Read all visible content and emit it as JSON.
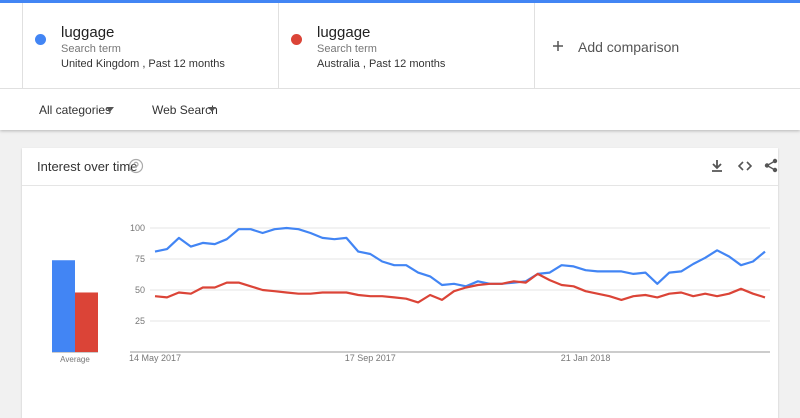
{
  "comparisons": [
    {
      "label": "Search term",
      "detail": "United Kingdom , Past 12 months"
    },
    {
      "label": "Search term",
      "detail": "Australia , Past 12 months"
    }
  ],
  "add_comparison": "Add comparison",
  "filters": [
    "All categories",
    "Web Search"
  ],
  "card_title": "Interest over time",
  "chart_data": {
    "type": "line",
    "categories": [
      "14 May 2017",
      null,
      null,
      null,
      null,
      null,
      null,
      null,
      null,
      null,
      null,
      null,
      null,
      null,
      null,
      null,
      null,
      null,
      "17 Sep 2017",
      null,
      null,
      null,
      null,
      null,
      null,
      null,
      null,
      null,
      null,
      null,
      null,
      null,
      null,
      null,
      null,
      null,
      "21 Jan 2018",
      null,
      null,
      null,
      null,
      null,
      null,
      null,
      null,
      null,
      null,
      null,
      null,
      null,
      null,
      null
    ],
    "series": [
      {
        "name": "luggage",
        "color": "#4285f4",
        "values": [
          81,
          83,
          92,
          85,
          88,
          87,
          91,
          99,
          99,
          96,
          99,
          100,
          99,
          96,
          92,
          91,
          92,
          81,
          79,
          73,
          70,
          70,
          64,
          61,
          54,
          55,
          53,
          57,
          55,
          55,
          56,
          57,
          63,
          64,
          70,
          69,
          66,
          65,
          65,
          65,
          63,
          64,
          55,
          64,
          65,
          71,
          76,
          82,
          77,
          70,
          73,
          81
        ]
      },
      {
        "name": "luggage",
        "color": "#db4437",
        "values": [
          45,
          44,
          48,
          47,
          52,
          52,
          56,
          56,
          53,
          50,
          49,
          48,
          47,
          47,
          48,
          48,
          48,
          46,
          45,
          45,
          44,
          43,
          40,
          46,
          42,
          49,
          52,
          54,
          55,
          55,
          57,
          56,
          63,
          58,
          54,
          53,
          49,
          47,
          45,
          42,
          45,
          46,
          44,
          47,
          48,
          45,
          47,
          45,
          47,
          51,
          47,
          44
        ]
      }
    ],
    "averages": {
      "label": "Average",
      "values": [
        74,
        48
      ]
    },
    "ylim": [
      0,
      100
    ],
    "yticks": [
      25,
      50,
      75,
      100
    ],
    "grid": true
  }
}
